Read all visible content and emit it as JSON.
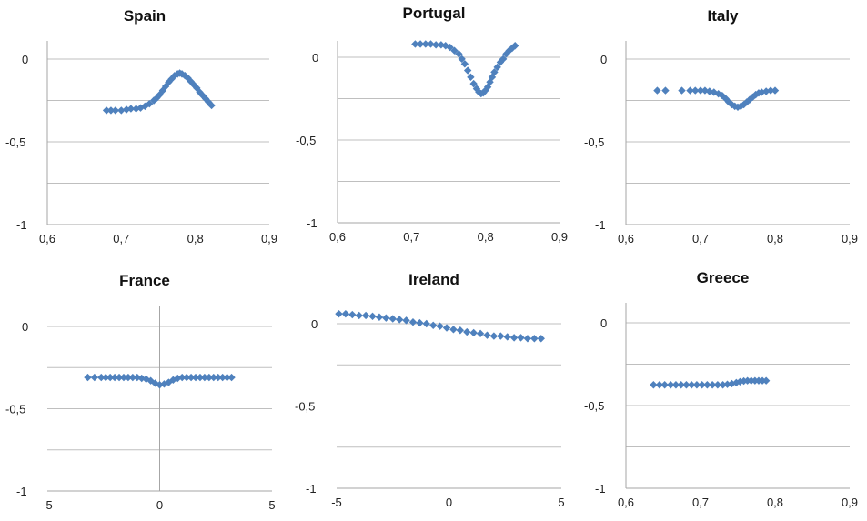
{
  "chart_data": [
    {
      "type": "scatter",
      "title": "Spain",
      "xlim": [
        0.6,
        0.9
      ],
      "ylim": [
        -1,
        0
      ],
      "x_ticks": [
        "0,6",
        "0,7",
        "0,8",
        "0,9"
      ],
      "y_ticks": [
        "0",
        "-0,5",
        "-1"
      ],
      "grid": true,
      "legend": "none",
      "marker": "diamond",
      "color": "#4f81bd",
      "points": [
        [
          0.68,
          -0.31
        ],
        [
          0.686,
          -0.31
        ],
        [
          0.692,
          -0.31
        ],
        [
          0.7,
          -0.31
        ],
        [
          0.707,
          -0.305
        ],
        [
          0.713,
          -0.3
        ],
        [
          0.72,
          -0.3
        ],
        [
          0.726,
          -0.295
        ],
        [
          0.732,
          -0.285
        ],
        [
          0.738,
          -0.27
        ],
        [
          0.744,
          -0.25
        ],
        [
          0.748,
          -0.235
        ],
        [
          0.752,
          -0.215
        ],
        [
          0.756,
          -0.19
        ],
        [
          0.76,
          -0.165
        ],
        [
          0.764,
          -0.14
        ],
        [
          0.768,
          -0.12
        ],
        [
          0.772,
          -0.1
        ],
        [
          0.776,
          -0.09
        ],
        [
          0.779,
          -0.085
        ],
        [
          0.782,
          -0.09
        ],
        [
          0.786,
          -0.1
        ],
        [
          0.79,
          -0.115
        ],
        [
          0.794,
          -0.135
        ],
        [
          0.798,
          -0.155
        ],
        [
          0.802,
          -0.175
        ],
        [
          0.806,
          -0.2
        ],
        [
          0.81,
          -0.22
        ],
        [
          0.814,
          -0.24
        ],
        [
          0.818,
          -0.26
        ],
        [
          0.822,
          -0.28
        ]
      ]
    },
    {
      "type": "scatter",
      "title": "Portugal",
      "xlim": [
        0.6,
        0.9
      ],
      "ylim": [
        -1,
        0.1
      ],
      "x_ticks": [
        "0,6",
        "0,7",
        "0,8",
        "0,9"
      ],
      "y_ticks": [
        "0",
        "-0,5",
        "-1"
      ],
      "grid": true,
      "legend": "none",
      "marker": "diamond",
      "color": "#4f81bd",
      "points": [
        [
          0.705,
          0.08
        ],
        [
          0.712,
          0.08
        ],
        [
          0.719,
          0.08
        ],
        [
          0.726,
          0.08
        ],
        [
          0.733,
          0.075
        ],
        [
          0.74,
          0.075
        ],
        [
          0.746,
          0.07
        ],
        [
          0.752,
          0.06
        ],
        [
          0.758,
          0.04
        ],
        [
          0.764,
          0.02
        ],
        [
          0.768,
          -0.01
        ],
        [
          0.772,
          -0.04
        ],
        [
          0.776,
          -0.08
        ],
        [
          0.78,
          -0.12
        ],
        [
          0.784,
          -0.16
        ],
        [
          0.788,
          -0.19
        ],
        [
          0.791,
          -0.21
        ],
        [
          0.794,
          -0.22
        ],
        [
          0.797,
          -0.215
        ],
        [
          0.8,
          -0.2
        ],
        [
          0.803,
          -0.18
        ],
        [
          0.806,
          -0.15
        ],
        [
          0.809,
          -0.12
        ],
        [
          0.812,
          -0.09
        ],
        [
          0.816,
          -0.06
        ],
        [
          0.82,
          -0.03
        ],
        [
          0.824,
          -0.01
        ],
        [
          0.828,
          0.02
        ],
        [
          0.832,
          0.04
        ],
        [
          0.836,
          0.055
        ],
        [
          0.84,
          0.07
        ]
      ]
    },
    {
      "type": "scatter",
      "title": "Italy",
      "xlim": [
        0.6,
        0.9
      ],
      "ylim": [
        -1,
        0.1
      ],
      "x_ticks": [
        "0,6",
        "0,7",
        "0,8",
        "0,9"
      ],
      "y_ticks": [
        "0",
        "-0,5",
        "-1"
      ],
      "grid": true,
      "legend": "none",
      "marker": "diamond",
      "color": "#4f81bd",
      "points": [
        [
          0.642,
          -0.19
        ],
        [
          0.653,
          -0.19
        ],
        [
          0.675,
          -0.19
        ],
        [
          0.686,
          -0.19
        ],
        [
          0.693,
          -0.19
        ],
        [
          0.7,
          -0.19
        ],
        [
          0.706,
          -0.19
        ],
        [
          0.712,
          -0.195
        ],
        [
          0.718,
          -0.2
        ],
        [
          0.724,
          -0.21
        ],
        [
          0.729,
          -0.22
        ],
        [
          0.734,
          -0.24
        ],
        [
          0.738,
          -0.26
        ],
        [
          0.742,
          -0.275
        ],
        [
          0.746,
          -0.285
        ],
        [
          0.75,
          -0.29
        ],
        [
          0.754,
          -0.285
        ],
        [
          0.758,
          -0.275
        ],
        [
          0.762,
          -0.26
        ],
        [
          0.766,
          -0.245
        ],
        [
          0.77,
          -0.23
        ],
        [
          0.774,
          -0.215
        ],
        [
          0.778,
          -0.205
        ],
        [
          0.782,
          -0.2
        ],
        [
          0.788,
          -0.195
        ],
        [
          0.794,
          -0.19
        ],
        [
          0.8,
          -0.19
        ]
      ]
    },
    {
      "type": "scatter",
      "title": "France",
      "xlim": [
        -5,
        5
      ],
      "ylim": [
        -1,
        0
      ],
      "x_ticks": [
        "-5",
        "0",
        "5"
      ],
      "y_ticks": [
        "0",
        "-0,5",
        "-1"
      ],
      "grid": true,
      "legend": "none",
      "marker": "diamond",
      "color": "#4f81bd",
      "points": [
        [
          -3.2,
          -0.31
        ],
        [
          -2.9,
          -0.31
        ],
        [
          -2.6,
          -0.31
        ],
        [
          -2.4,
          -0.31
        ],
        [
          -2.2,
          -0.31
        ],
        [
          -2.0,
          -0.31
        ],
        [
          -1.8,
          -0.31
        ],
        [
          -1.6,
          -0.31
        ],
        [
          -1.4,
          -0.31
        ],
        [
          -1.2,
          -0.31
        ],
        [
          -1.0,
          -0.31
        ],
        [
          -0.8,
          -0.315
        ],
        [
          -0.6,
          -0.32
        ],
        [
          -0.4,
          -0.33
        ],
        [
          -0.2,
          -0.345
        ],
        [
          0.0,
          -0.355
        ],
        [
          0.2,
          -0.35
        ],
        [
          0.4,
          -0.34
        ],
        [
          0.6,
          -0.325
        ],
        [
          0.8,
          -0.315
        ],
        [
          1.0,
          -0.31
        ],
        [
          1.2,
          -0.31
        ],
        [
          1.4,
          -0.31
        ],
        [
          1.6,
          -0.31
        ],
        [
          1.8,
          -0.31
        ],
        [
          2.0,
          -0.31
        ],
        [
          2.2,
          -0.31
        ],
        [
          2.4,
          -0.31
        ],
        [
          2.6,
          -0.31
        ],
        [
          2.8,
          -0.31
        ],
        [
          3.0,
          -0.31
        ],
        [
          3.2,
          -0.31
        ]
      ]
    },
    {
      "type": "scatter",
      "title": "Ireland",
      "xlim": [
        -5,
        5
      ],
      "ylim": [
        -1,
        0.1
      ],
      "x_ticks": [
        "-5",
        "0",
        "5"
      ],
      "y_ticks": [
        "0",
        "-0,5",
        "-1"
      ],
      "grid": true,
      "legend": "none",
      "marker": "diamond",
      "color": "#4f81bd",
      "points": [
        [
          -4.9,
          0.06
        ],
        [
          -4.6,
          0.06
        ],
        [
          -4.3,
          0.055
        ],
        [
          -4.0,
          0.05
        ],
        [
          -3.7,
          0.05
        ],
        [
          -3.4,
          0.045
        ],
        [
          -3.1,
          0.04
        ],
        [
          -2.8,
          0.035
        ],
        [
          -2.5,
          0.03
        ],
        [
          -2.2,
          0.025
        ],
        [
          -1.9,
          0.02
        ],
        [
          -1.6,
          0.01
        ],
        [
          -1.3,
          0.005
        ],
        [
          -1.0,
          0.0
        ],
        [
          -0.7,
          -0.01
        ],
        [
          -0.4,
          -0.015
        ],
        [
          -0.1,
          -0.025
        ],
        [
          0.2,
          -0.035
        ],
        [
          0.5,
          -0.04
        ],
        [
          0.8,
          -0.05
        ],
        [
          1.1,
          -0.055
        ],
        [
          1.4,
          -0.06
        ],
        [
          1.7,
          -0.07
        ],
        [
          2.0,
          -0.075
        ],
        [
          2.3,
          -0.075
        ],
        [
          2.6,
          -0.08
        ],
        [
          2.9,
          -0.085
        ],
        [
          3.2,
          -0.085
        ],
        [
          3.5,
          -0.09
        ],
        [
          3.8,
          -0.09
        ],
        [
          4.1,
          -0.09
        ]
      ]
    },
    {
      "type": "scatter",
      "title": "Greece",
      "xlim": [
        0.6,
        0.9
      ],
      "ylim": [
        -1,
        0.1
      ],
      "x_ticks": [
        "0,6",
        "0,7",
        "0,8",
        "0,9"
      ],
      "y_ticks": [
        "0",
        "-0,5",
        "-1"
      ],
      "grid": true,
      "legend": "none",
      "marker": "diamond",
      "color": "#4f81bd",
      "points": [
        [
          0.637,
          -0.375
        ],
        [
          0.645,
          -0.375
        ],
        [
          0.652,
          -0.375
        ],
        [
          0.66,
          -0.375
        ],
        [
          0.667,
          -0.375
        ],
        [
          0.674,
          -0.375
        ],
        [
          0.681,
          -0.375
        ],
        [
          0.688,
          -0.375
        ],
        [
          0.695,
          -0.375
        ],
        [
          0.702,
          -0.375
        ],
        [
          0.709,
          -0.375
        ],
        [
          0.716,
          -0.375
        ],
        [
          0.723,
          -0.375
        ],
        [
          0.73,
          -0.375
        ],
        [
          0.736,
          -0.372
        ],
        [
          0.742,
          -0.368
        ],
        [
          0.748,
          -0.362
        ],
        [
          0.753,
          -0.356
        ],
        [
          0.758,
          -0.352
        ],
        [
          0.763,
          -0.35
        ],
        [
          0.768,
          -0.35
        ],
        [
          0.773,
          -0.35
        ],
        [
          0.778,
          -0.35
        ],
        [
          0.783,
          -0.35
        ],
        [
          0.788,
          -0.35
        ]
      ]
    }
  ]
}
